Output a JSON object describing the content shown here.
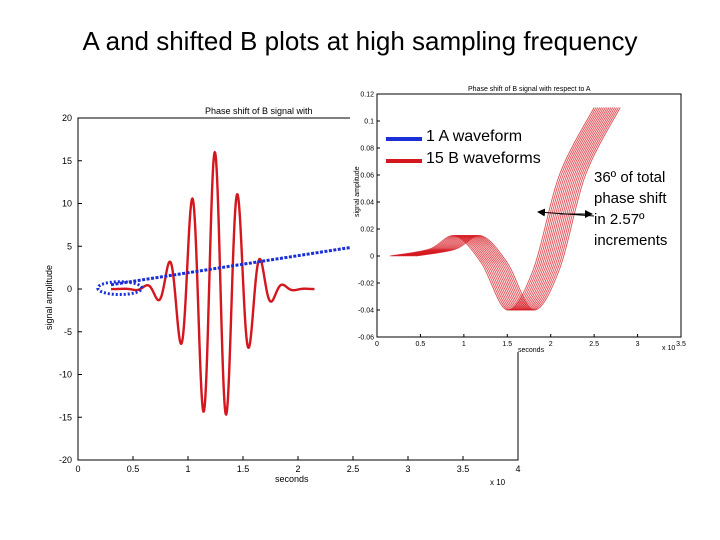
{
  "slide_title": "A and shifted B plots at high sampling frequency",
  "legend": [
    {
      "label": "1 A waveform",
      "color": "#1a2fd6"
    },
    {
      "label": "15 B waveforms",
      "color": "#d4161e"
    }
  ],
  "annotation": [
    "36º of total",
    "phase shift",
    "in 2.57º",
    "increments"
  ],
  "chart_data": [
    {
      "type": "line",
      "title": "Phase shift of B signal with",
      "xlabel": "seconds",
      "ylabel": "signal amplitude",
      "x_multiplier": "x 10",
      "x_ticks": [
        "0",
        "0.5",
        "1",
        "1.5",
        "2",
        "2.5",
        "3",
        "3.5",
        "4"
      ],
      "y_ticks": [
        "20",
        "15",
        "10",
        "5",
        "0",
        "-5",
        "-10",
        "-15",
        "-20"
      ],
      "xlim": [
        0,
        4
      ],
      "ylim": [
        -20,
        20
      ],
      "series": [
        {
          "color": "#1a2fd6",
          "x": [
            0.3,
            2.5
          ],
          "y": [
            0.5,
            4.9
          ]
        },
        {
          "color": "#d4161e",
          "envelope_peak": 16,
          "center_x": 1.25,
          "frequency": 4.8
        }
      ]
    },
    {
      "type": "line",
      "title": "Phase shift of B signal with respect to A",
      "xlabel": "seconds",
      "ylabel": "signal amplitude",
      "x_multiplier": "x 10",
      "x_ticks": [
        "0",
        "0.5",
        "1",
        "1.5",
        "2",
        "2.5",
        "3",
        "3.5"
      ],
      "y_ticks": [
        "0.12",
        "0.1",
        "0.08",
        "0.06",
        "0.04",
        "0.02",
        "0",
        "-0.02",
        "-0.04",
        "-0.06"
      ],
      "xlim": [
        0,
        3.5
      ],
      "ylim": [
        -0.06,
        0.12
      ],
      "series": [
        {
          "color": "#d4161e",
          "count": 15,
          "x": [
            0.25,
            0.7,
            1.0,
            1.3,
            1.6,
            1.9,
            2.2,
            2.6
          ],
          "y": [
            0,
            0.005,
            0.015,
            -0.005,
            -0.04,
            -0.01,
            0.06,
            0.11
          ]
        }
      ]
    }
  ]
}
